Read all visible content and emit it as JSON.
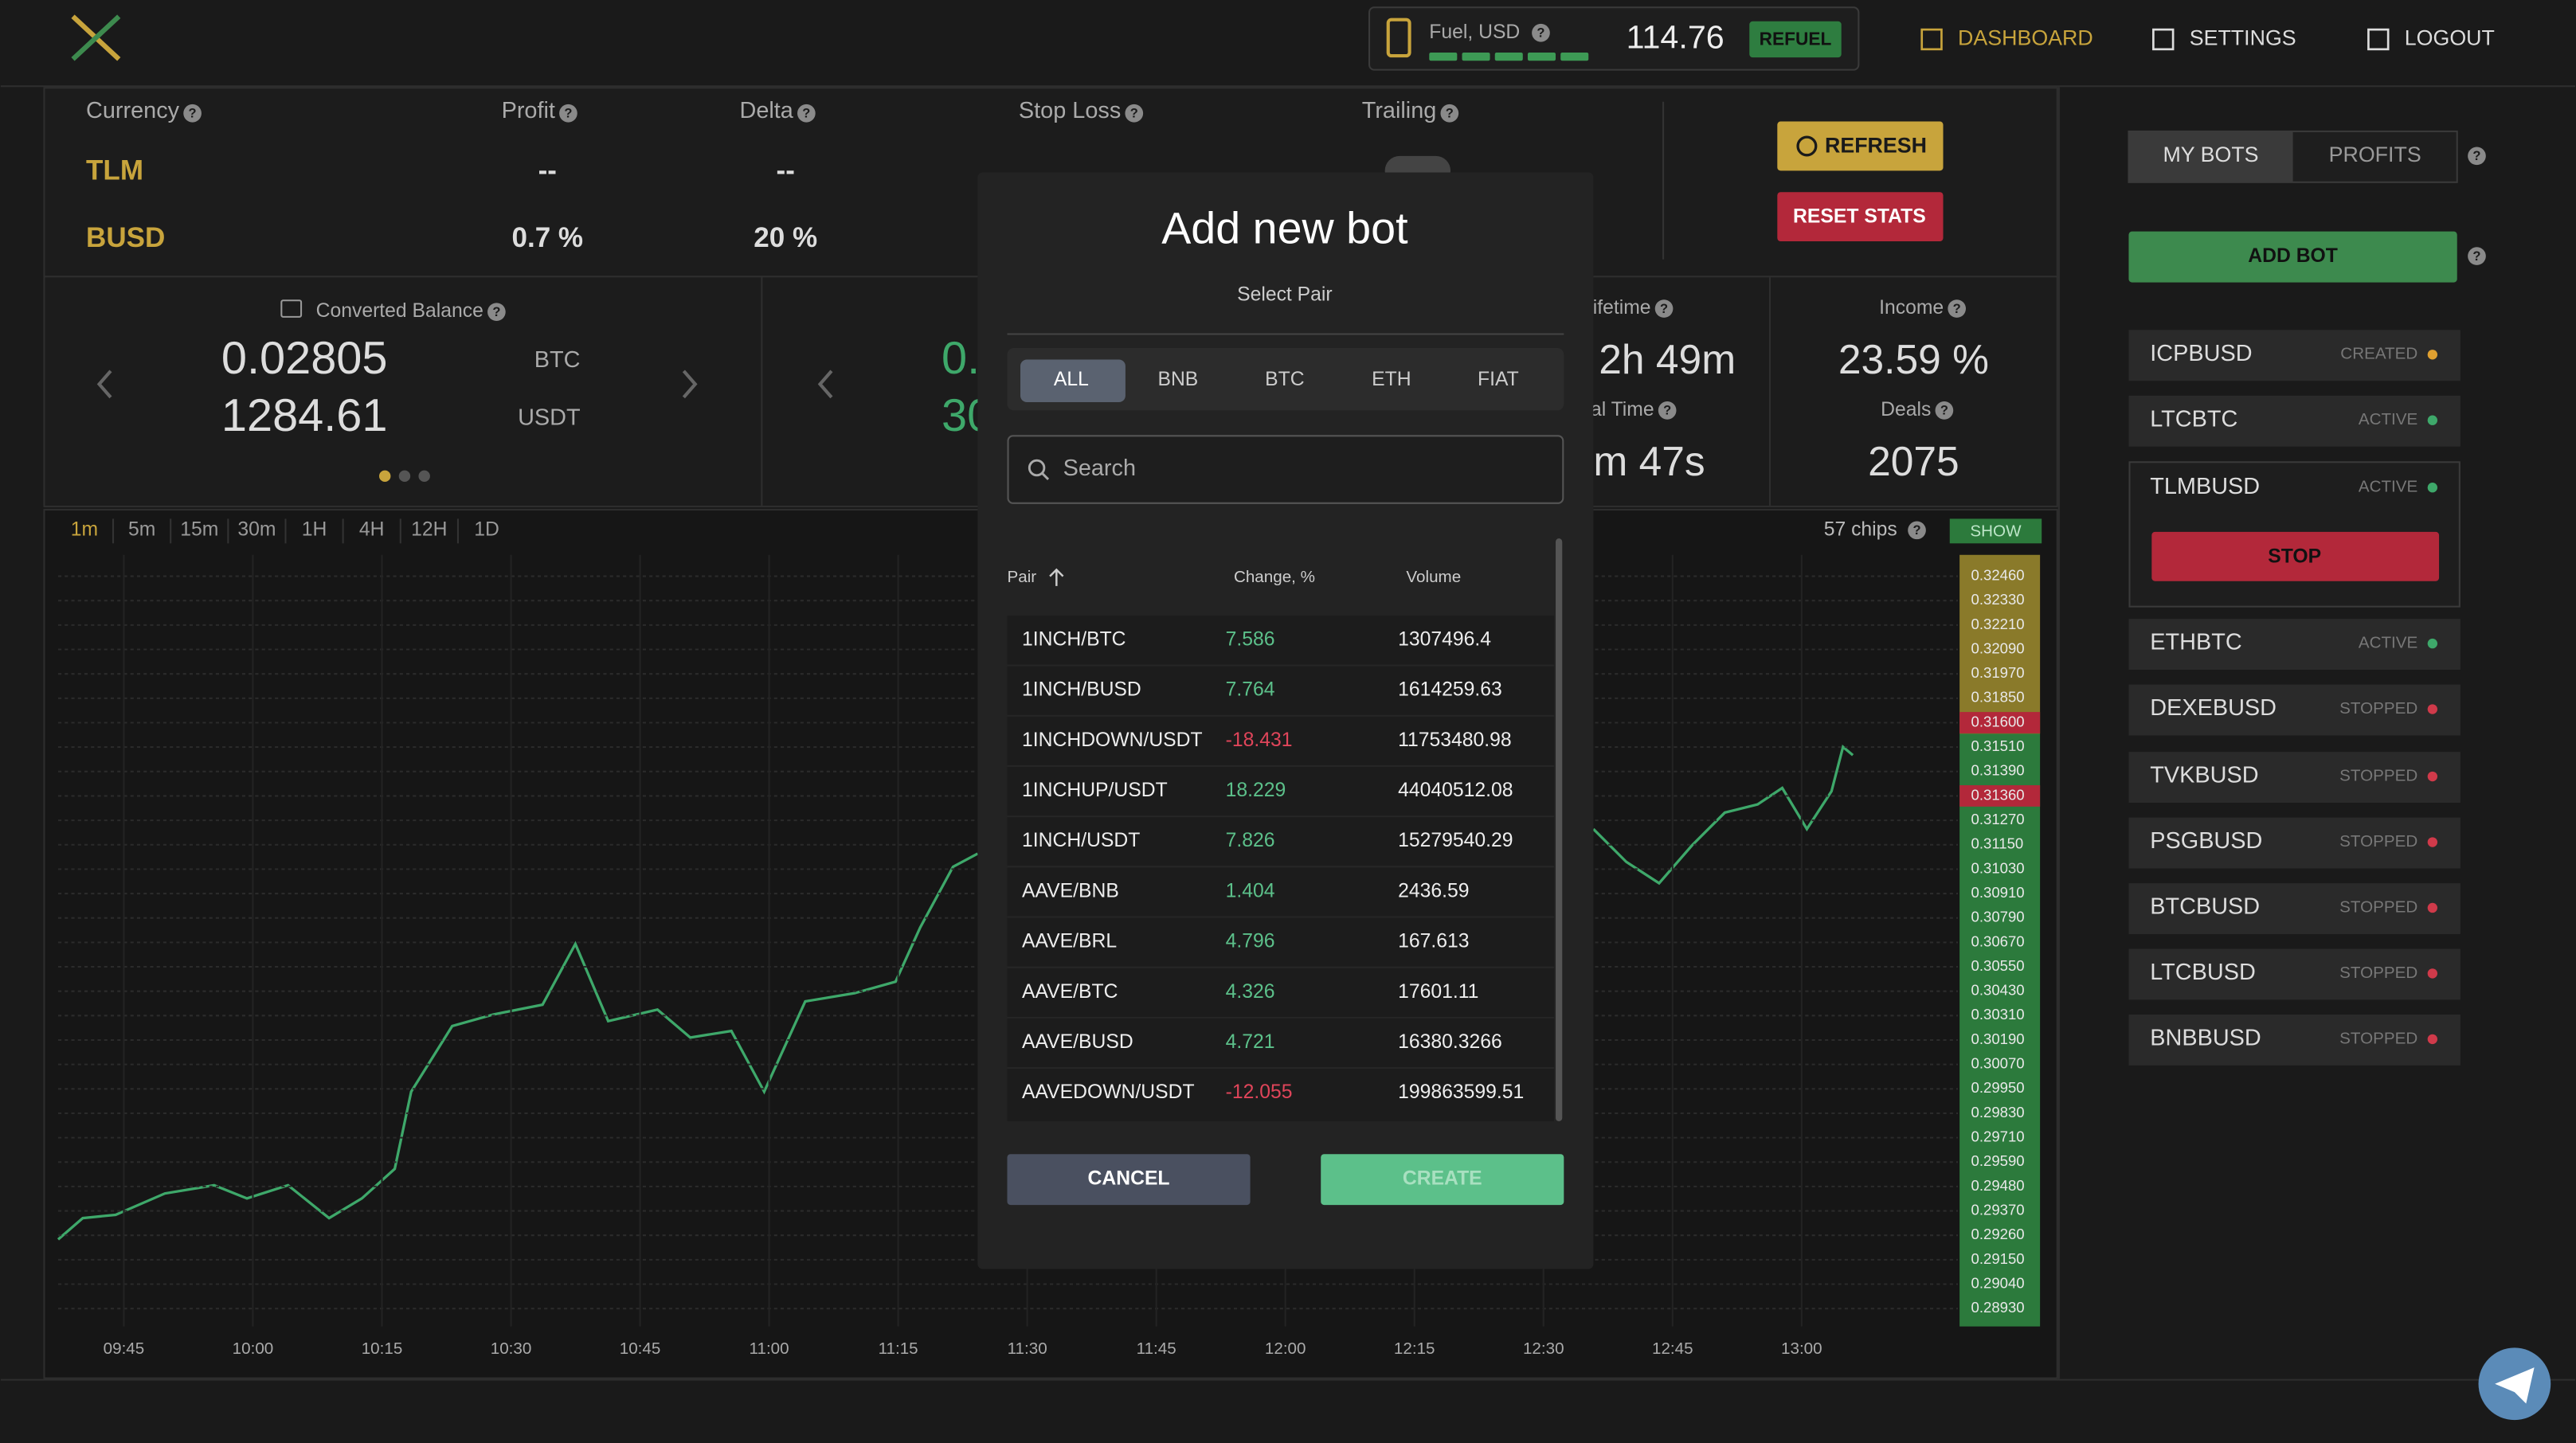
{
  "header": {
    "fuel_label": "Fuel, USD",
    "fuel_value": "114.76",
    "refuel": "REFUEL",
    "nav": [
      "DASHBOARD",
      "SETTINGS",
      "LOGOUT"
    ]
  },
  "help_icon": "?",
  "stats": {
    "columns": [
      "Currency",
      "Profit",
      "Delta",
      "Stop Loss",
      "Trailing"
    ],
    "rows": [
      [
        "TLM",
        "--",
        "--"
      ],
      [
        "BUSD",
        "0.7 %",
        "20 %"
      ]
    ],
    "refresh": "REFRESH",
    "reset": "RESET STATS"
  },
  "balance": {
    "label": "Converted Balance",
    "values": [
      "0.02805",
      "1284.61"
    ],
    "units": [
      "BTC",
      "USDT"
    ]
  },
  "balance2": {
    "values": [
      "0.",
      "30"
    ]
  },
  "time_panel": {
    "lifetime_label": "Lifetime",
    "lifetime": "2h 49m",
    "real_time_label": "Real Time",
    "real_time": "m 47s"
  },
  "income": {
    "label": "Income",
    "value": "23.59 %",
    "deals_label": "Deals",
    "deals": "2075"
  },
  "chart": {
    "timeframes": [
      "1m",
      "5m",
      "15m",
      "30m",
      "1H",
      "4H",
      "12H",
      "1D"
    ],
    "chips": "57 chips",
    "show": "SHOW",
    "prices": [
      "0.32460",
      "0.32330",
      "0.32210",
      "0.32090",
      "0.31970",
      "0.31850",
      "0.31600",
      "0.31510",
      "0.31390",
      "0.31360",
      "0.31270",
      "0.31150",
      "0.31030",
      "0.30910",
      "0.30790",
      "0.30670",
      "0.30550",
      "0.30430",
      "0.30310",
      "0.30190",
      "0.30070",
      "0.29950",
      "0.29830",
      "0.29710",
      "0.29590",
      "0.29480",
      "0.29370",
      "0.29260",
      "0.29150",
      "0.29040",
      "0.28930"
    ],
    "times": [
      "09:45",
      "10:00",
      "10:15",
      "10:30",
      "10:45",
      "11:00",
      "11:15",
      "11:30",
      "11:45",
      "12:00",
      "12:15",
      "12:30",
      "12:45",
      "13:00"
    ]
  },
  "modal": {
    "title": "Add new bot",
    "subtitle": "Select Pair",
    "tabs": [
      "ALL",
      "BNB",
      "BTC",
      "ETH",
      "FIAT"
    ],
    "search": "Search",
    "columns": [
      "Pair",
      "Change, %",
      "Volume"
    ],
    "rows": [
      [
        "1INCH/BTC",
        "7.586",
        "1307496.4"
      ],
      [
        "1INCH/BUSD",
        "7.764",
        "1614259.63"
      ],
      [
        "1INCHDOWN/USDT",
        "-18.431",
        "11753480.98"
      ],
      [
        "1INCHUP/USDT",
        "18.229",
        "44040512.08"
      ],
      [
        "1INCH/USDT",
        "7.826",
        "15279540.29"
      ],
      [
        "AAVE/BNB",
        "1.404",
        "2436.59"
      ],
      [
        "AAVE/BRL",
        "4.796",
        "167.613"
      ],
      [
        "AAVE/BTC",
        "4.326",
        "17601.11"
      ],
      [
        "AAVE/BUSD",
        "4.721",
        "16380.3266"
      ],
      [
        "AAVEDOWN/USDT",
        "-12.055",
        "199863599.51"
      ]
    ],
    "cancel": "CANCEL",
    "create": "CREATE"
  },
  "sidebar": {
    "tabs": [
      "MY BOTS",
      "PROFITS"
    ],
    "add_bot": "ADD BOT",
    "stop": "STOP",
    "bots": [
      [
        "ICPBUSD",
        "CREATED"
      ],
      [
        "LTCBTC",
        "ACTIVE"
      ],
      [
        "TLMBUSD",
        "ACTIVE"
      ],
      [
        "ETHBTC",
        "ACTIVE"
      ],
      [
        "DEXEBUSD",
        "STOPPED"
      ],
      [
        "TVKBUSD",
        "STOPPED"
      ],
      [
        "PSGBUSD",
        "STOPPED"
      ],
      [
        "BTCBUSD",
        "STOPPED"
      ],
      [
        "LTCBUSD",
        "STOPPED"
      ],
      [
        "BNBBUSD",
        "STOPPED"
      ]
    ]
  }
}
